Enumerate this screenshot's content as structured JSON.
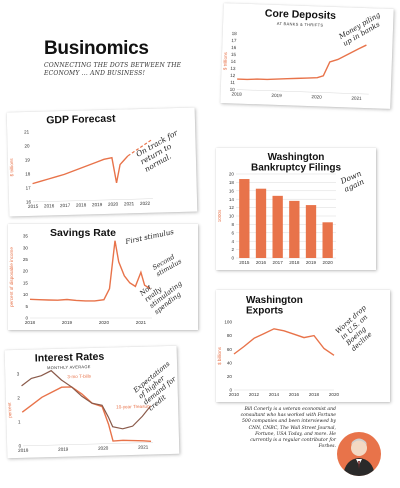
{
  "brand": {
    "title": "Businomics",
    "tagline": "CONNECTING THE DOTS BETWEEN THE ECONOMY ... AND BUSINESS!"
  },
  "bio": "Bill Conerly is a veteran economist and consultant who has worked with Fortune 500 companies and been interviewed by CNN, CNBC, The Wall Street Journal, Fortune, USA Today, and more. He currently is a regular contributor for Forbes.",
  "colors": {
    "accent": "#e8734a",
    "text": "#222222"
  },
  "chart_data": [
    {
      "id": "core-deposits",
      "type": "line",
      "title": "Core Deposits",
      "subtitle": "AT BANKS & THRIFTS",
      "ylabel": "$ trillions",
      "ylim": [
        10,
        18
      ],
      "yticks": [
        10,
        11,
        12,
        13,
        14,
        15,
        16,
        17,
        18
      ],
      "xlim": [
        2018,
        2021.3
      ],
      "xticks": [
        "2018",
        "2019",
        "2020",
        "2021"
      ],
      "x": [
        2018.0,
        2018.25,
        2018.5,
        2018.75,
        2019.0,
        2019.25,
        2019.5,
        2019.75,
        2020.0,
        2020.15,
        2020.3,
        2020.5,
        2020.75,
        2021.0,
        2021.2
      ],
      "values": [
        11.5,
        11.5,
        11.6,
        11.6,
        11.7,
        11.8,
        11.9,
        12.0,
        12.1,
        12.4,
        14.4,
        14.8,
        15.6,
        16.4,
        17.0
      ],
      "annotation": "Money piling up in banks"
    },
    {
      "id": "gdp-forecast",
      "type": "line",
      "title": "GDP Forecast",
      "ylabel": "$ trillions",
      "ylim": [
        16,
        21
      ],
      "yticks": [
        16,
        17,
        18,
        19,
        20,
        21
      ],
      "xlim": [
        2015,
        2022.5
      ],
      "xticks": [
        "2015",
        "2016",
        "2017",
        "2018",
        "2019",
        "2020",
        "2021",
        "2022"
      ],
      "x": [
        2015.0,
        2015.5,
        2016.0,
        2016.5,
        2017.0,
        2017.5,
        2018.0,
        2018.5,
        2019.0,
        2019.5,
        2020.0,
        2020.25,
        2020.5,
        2020.75,
        2021.0
      ],
      "values": [
        17.3,
        17.45,
        17.6,
        17.75,
        17.9,
        18.1,
        18.3,
        18.5,
        18.7,
        18.9,
        19.0,
        17.2,
        18.5,
        18.8,
        19.1
      ],
      "forecast": {
        "x": [
          2021.0,
          2022.5
        ],
        "values": [
          19.1,
          20.2
        ]
      },
      "annotation": "On track for return to normal."
    },
    {
      "id": "washington-bankruptcy-filings",
      "type": "bar",
      "title": "Washington Bankruptcy Filings",
      "ylabel": "1000s",
      "ylim": [
        0,
        20
      ],
      "yticks": [
        0,
        2,
        4,
        6,
        8,
        10,
        12,
        14,
        16,
        18,
        20
      ],
      "categories": [
        "2015",
        "2016",
        "2017",
        "2018",
        "2019",
        "2020"
      ],
      "values": [
        18.8,
        16.5,
        14.8,
        13.6,
        12.6,
        8.5
      ],
      "annotation": "Down again"
    },
    {
      "id": "savings-rate",
      "type": "line",
      "title": "Savings Rate",
      "ylabel": "percent of disposable income",
      "ylim": [
        0,
        35
      ],
      "yticks": [
        0,
        5,
        10,
        15,
        20,
        25,
        30,
        35
      ],
      "xlim": [
        2018,
        2021.3
      ],
      "xticks": [
        "2018",
        "2019",
        "2020",
        "2021"
      ],
      "x": [
        2018.0,
        2018.25,
        2018.5,
        2018.75,
        2019.0,
        2019.25,
        2019.5,
        2019.75,
        2020.0,
        2020.15,
        2020.3,
        2020.4,
        2020.55,
        2020.7,
        2020.85,
        2021.0,
        2021.1,
        2021.25
      ],
      "values": [
        8.0,
        7.8,
        7.7,
        7.6,
        7.9,
        7.5,
        7.3,
        7.3,
        7.8,
        12.5,
        33.0,
        24.0,
        18.0,
        15.0,
        13.5,
        19.5,
        14.0,
        12.5
      ],
      "annotations": [
        "First stimulus",
        "Second stimulus",
        "Not really stimulating spending"
      ]
    },
    {
      "id": "washington-exports",
      "type": "line",
      "title": "Washington Exports",
      "ylabel": "$ billions",
      "ylim": [
        0,
        100
      ],
      "yticks": [
        0,
        20,
        40,
        60,
        80,
        100
      ],
      "xlim": [
        2010,
        2020
      ],
      "xticks": [
        "2010",
        "2012",
        "2014",
        "2016",
        "2018",
        "2020"
      ],
      "x": [
        2010,
        2011,
        2012,
        2013,
        2014,
        2015,
        2016,
        2017,
        2018,
        2019,
        2020
      ],
      "values": [
        53,
        64,
        76,
        83,
        90,
        87,
        82,
        77,
        80,
        61,
        51
      ],
      "annotation": "Worst drop in U.S. on Boeing decline"
    },
    {
      "id": "interest-rates",
      "type": "line",
      "title": "Interest Rates",
      "subtitle": "MONTHLY AVERAGE",
      "ylabel": "percent",
      "ylim": [
        0,
        3
      ],
      "yticks": [
        0,
        1,
        2,
        3
      ],
      "xlim": [
        2018,
        2021.25
      ],
      "xticks": [
        "2018",
        "2019",
        "2020",
        "2021"
      ],
      "series": [
        {
          "name": "3-mo T-bills",
          "x": [
            2018.0,
            2018.25,
            2018.5,
            2018.75,
            2019.0,
            2019.25,
            2019.5,
            2019.75,
            2020.0,
            2020.15,
            2020.25,
            2020.5,
            2020.75,
            2021.0,
            2021.2
          ],
          "values": [
            1.4,
            1.7,
            2.0,
            2.2,
            2.4,
            2.4,
            2.1,
            1.7,
            1.55,
            0.8,
            0.1,
            0.12,
            0.1,
            0.08,
            0.05
          ]
        },
        {
          "name": "10-year Treasury",
          "x": [
            2018.0,
            2018.25,
            2018.5,
            2018.75,
            2019.0,
            2019.25,
            2019.5,
            2019.75,
            2020.0,
            2020.15,
            2020.25,
            2020.5,
            2020.75,
            2021.0,
            2021.2
          ],
          "values": [
            2.5,
            2.8,
            2.9,
            3.1,
            2.7,
            2.4,
            2.0,
            1.7,
            1.6,
            1.1,
            0.7,
            0.6,
            0.7,
            1.1,
            1.5
          ]
        }
      ],
      "annotation": "Expectations of higher demand for credit"
    }
  ]
}
